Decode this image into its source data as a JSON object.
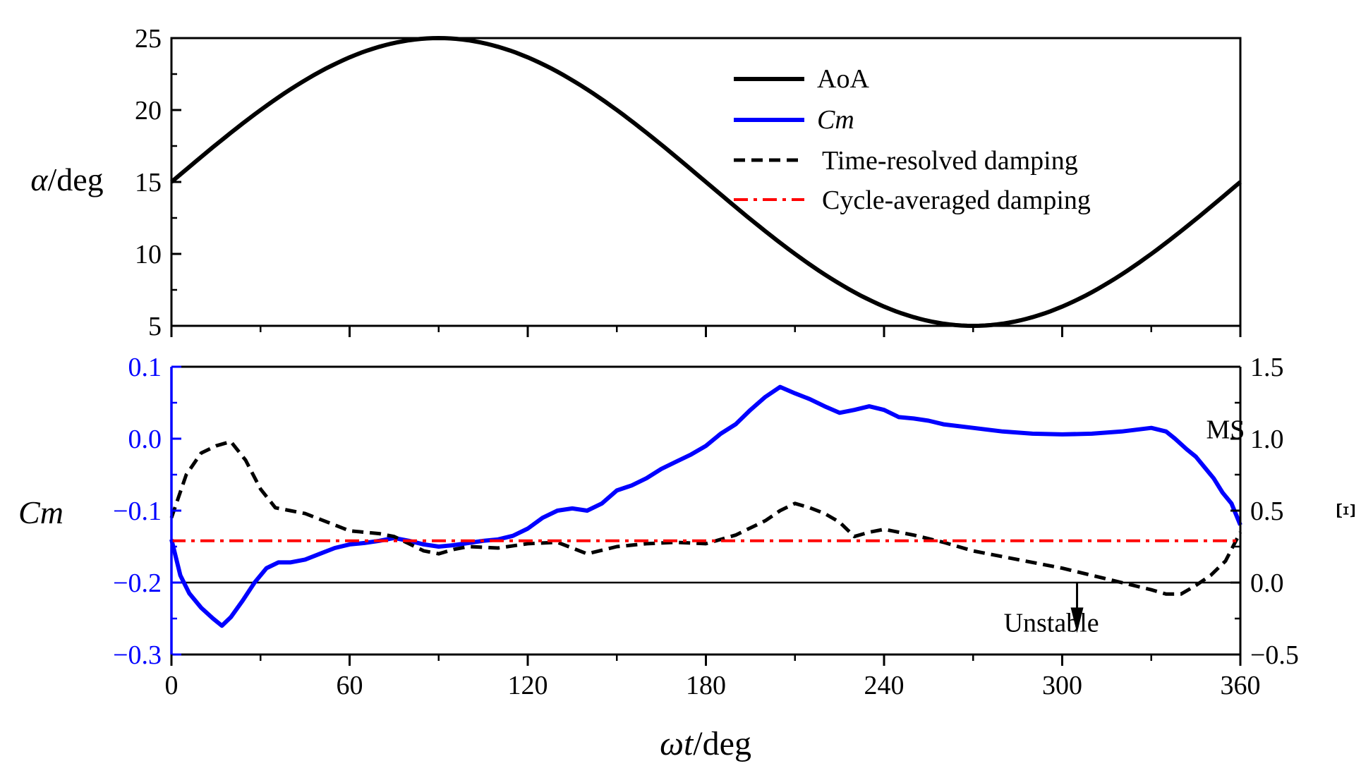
{
  "chart_data": [
    {
      "type": "line",
      "panel": "top",
      "ylabel": {
        "greek": "α",
        "unit": "/deg"
      },
      "ylim": [
        5,
        25
      ],
      "xlim": [
        0,
        360
      ],
      "yticks": [
        5,
        10,
        15,
        20,
        25
      ],
      "series": [
        {
          "name": "AoA",
          "formula": "15 + 10*sin(x)",
          "x": [
            0,
            30,
            60,
            90,
            120,
            150,
            180,
            210,
            240,
            270,
            300,
            330,
            360
          ],
          "values": [
            15,
            20,
            23.66,
            25,
            23.66,
            20,
            15,
            10,
            6.34,
            5,
            6.34,
            10,
            15
          ]
        }
      ],
      "legend": {
        "position": "top-right",
        "entries": [
          {
            "label": "AoA",
            "style": "solid",
            "color": "#000000"
          },
          {
            "label": "Cm",
            "style": "solid",
            "color": "#0000ff",
            "italic": true
          },
          {
            "label": "Time-resolved damping",
            "style": "dashed",
            "color": "#000000"
          },
          {
            "label": "Cycle-averaged damping",
            "style": "dash-dot",
            "color": "#ff0000"
          }
        ]
      }
    },
    {
      "type": "line",
      "panel": "bottom",
      "ylabel": "Cm",
      "y2label": "Ξ",
      "ylim": [
        -0.3,
        0.1
      ],
      "y2lim": [
        -0.5,
        1.5
      ],
      "xlim": [
        0,
        360
      ],
      "yticks": [
        "0.1",
        "0.0",
        "−0.1",
        "−0.2",
        "−0.3"
      ],
      "yticks_values": [
        0.1,
        0.0,
        -0.1,
        -0.2,
        -0.3
      ],
      "y2ticks": [
        "1.5",
        "1.0",
        "0.5",
        "0.0",
        "−0.5"
      ],
      "y2ticks_values": [
        1.5,
        1.0,
        0.5,
        0.0,
        -0.5
      ],
      "zero_line_y2": 0.0,
      "series": [
        {
          "name": "Cm",
          "axis": "left",
          "color": "#0000ff",
          "style": "solid",
          "x": [
            0,
            3,
            6,
            10,
            14,
            17,
            20,
            24,
            28,
            32,
            36,
            40,
            45,
            50,
            55,
            60,
            65,
            70,
            75,
            80,
            85,
            90,
            95,
            100,
            105,
            110,
            115,
            120,
            125,
            130,
            135,
            140,
            145,
            150,
            155,
            160,
            165,
            170,
            175,
            180,
            185,
            190,
            195,
            200,
            205,
            210,
            215,
            220,
            225,
            230,
            235,
            240,
            245,
            250,
            255,
            260,
            270,
            280,
            290,
            300,
            310,
            320,
            330,
            335,
            338,
            342,
            345,
            348,
            351,
            354,
            357,
            360
          ],
          "values": [
            -0.14,
            -0.19,
            -0.215,
            -0.235,
            -0.25,
            -0.26,
            -0.248,
            -0.225,
            -0.2,
            -0.18,
            -0.172,
            -0.172,
            -0.168,
            -0.16,
            -0.152,
            -0.147,
            -0.145,
            -0.142,
            -0.138,
            -0.142,
            -0.147,
            -0.15,
            -0.148,
            -0.145,
            -0.142,
            -0.14,
            -0.135,
            -0.125,
            -0.11,
            -0.1,
            -0.097,
            -0.1,
            -0.09,
            -0.072,
            -0.065,
            -0.055,
            -0.042,
            -0.032,
            -0.022,
            -0.01,
            0.007,
            0.02,
            0.04,
            0.058,
            0.072,
            0.063,
            0.055,
            0.045,
            0.036,
            0.04,
            0.045,
            0.04,
            0.03,
            0.028,
            0.025,
            0.02,
            0.015,
            0.01,
            0.007,
            0.006,
            0.007,
            0.01,
            0.015,
            0.01,
            0.0,
            -0.015,
            -0.025,
            -0.04,
            -0.055,
            -0.075,
            -0.09,
            -0.12
          ]
        },
        {
          "name": "Time-resolved damping",
          "axis": "right",
          "color": "#000000",
          "style": "dashed",
          "x": [
            0,
            5,
            10,
            15,
            20,
            25,
            30,
            35,
            40,
            45,
            50,
            55,
            60,
            65,
            70,
            75,
            80,
            85,
            90,
            95,
            100,
            110,
            120,
            130,
            140,
            150,
            160,
            170,
            180,
            190,
            200,
            205,
            210,
            215,
            220,
            225,
            230,
            235,
            240,
            250,
            260,
            270,
            280,
            290,
            300,
            310,
            320,
            330,
            335,
            340,
            345,
            350,
            355,
            360
          ],
          "values": [
            0.45,
            0.75,
            0.9,
            0.95,
            0.98,
            0.85,
            0.65,
            0.52,
            0.5,
            0.48,
            0.44,
            0.4,
            0.36,
            0.35,
            0.34,
            0.32,
            0.27,
            0.22,
            0.2,
            0.23,
            0.25,
            0.24,
            0.27,
            0.28,
            0.2,
            0.25,
            0.27,
            0.28,
            0.27,
            0.33,
            0.43,
            0.5,
            0.55,
            0.52,
            0.48,
            0.42,
            0.32,
            0.35,
            0.37,
            0.33,
            0.28,
            0.22,
            0.18,
            0.14,
            0.1,
            0.05,
            0.0,
            -0.05,
            -0.08,
            -0.08,
            -0.02,
            0.05,
            0.15,
            0.35
          ]
        },
        {
          "name": "Cycle-averaged damping",
          "axis": "right",
          "color": "#ff0000",
          "style": "dash-dot",
          "x": [
            0,
            360
          ],
          "values": [
            0.29,
            0.29
          ]
        }
      ],
      "annotations": [
        {
          "text": "MS",
          "x": 355,
          "y": 0.02,
          "axis": "left"
        },
        {
          "text": "Unstable",
          "x": 303,
          "y": -0.235,
          "axis": "left",
          "arrow": {
            "x": 305,
            "from_y2": 0.0,
            "to_y2": -0.35
          }
        }
      ]
    }
  ],
  "xaxis": {
    "label": {
      "greek": "ωt",
      "unit": "/deg"
    },
    "ticks": [
      0,
      60,
      120,
      180,
      240,
      300,
      360
    ]
  }
}
